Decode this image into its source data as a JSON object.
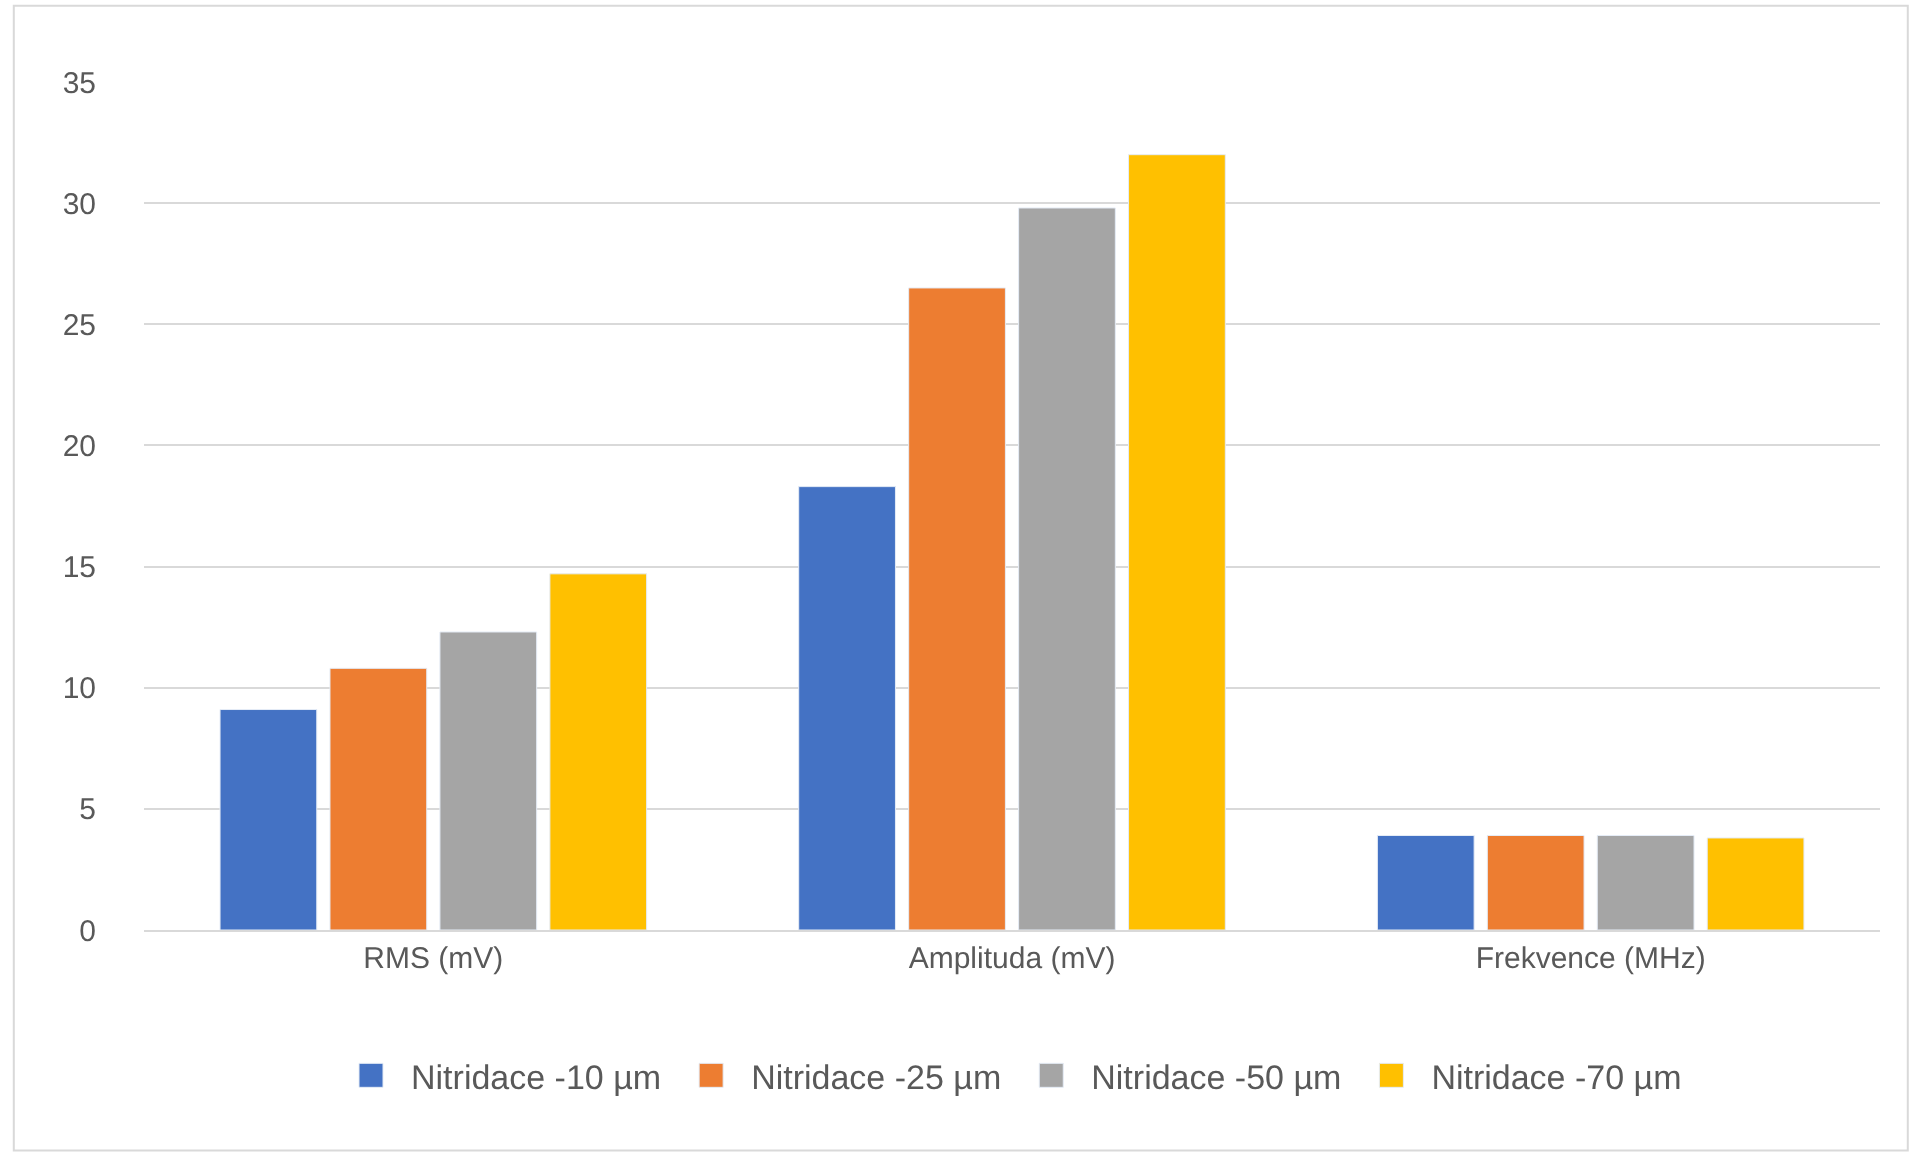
{
  "chart_data": {
    "type": "bar",
    "categories": [
      "RMS (mV)",
      "Amplituda (mV)",
      "Frekvence (MHz)"
    ],
    "series": [
      {
        "name": "Nitridace -10 µm",
        "color": "#4472c4",
        "values": [
          9.1,
          18.3,
          3.9
        ]
      },
      {
        "name": "Nitridace -25 µm",
        "color": "#ed7d31",
        "values": [
          10.8,
          26.5,
          3.9
        ]
      },
      {
        "name": "Nitridace -50 µm",
        "color": "#a5a5a5",
        "values": [
          12.3,
          29.8,
          3.9
        ]
      },
      {
        "name": "Nitridace -70 µm",
        "color": "#ffc000",
        "values": [
          14.7,
          32.0,
          3.8
        ]
      }
    ],
    "ylim": [
      0,
      35
    ],
    "yticks": [
      0,
      5,
      10,
      15,
      20,
      25,
      30,
      35
    ],
    "grid": "y",
    "legend": "bottom"
  }
}
